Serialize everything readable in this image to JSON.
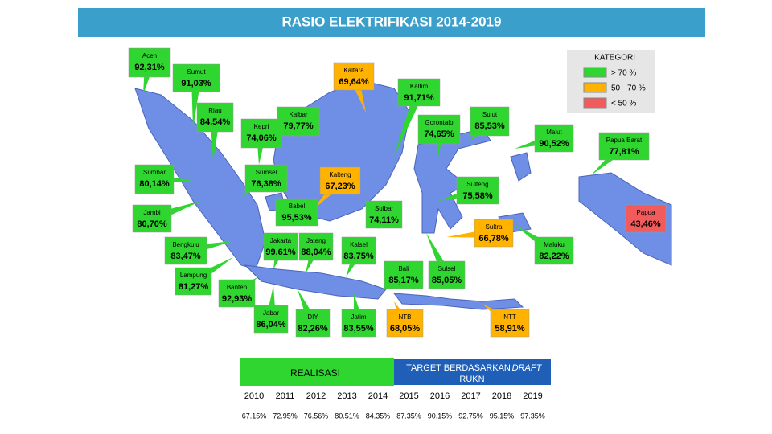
{
  "header": {
    "title": "RASIO ELEKTRIFIKASI 2014-2019"
  },
  "legend": {
    "title": "KATEGORI",
    "items": [
      {
        "label": "> 70 %",
        "color": "#2fd62f"
      },
      {
        "label": "50 -  70 %",
        "color": "#ffb300"
      },
      {
        "label": "< 50 %",
        "color": "#f25b5b"
      }
    ]
  },
  "regions": [
    {
      "name": "Aceh",
      "value": "92,31%",
      "color": "#2fd62f"
    },
    {
      "name": "Sumut",
      "value": "91,03%",
      "color": "#2fd62f"
    },
    {
      "name": "Kaltara",
      "value": "69,64%",
      "color": "#ffb300"
    },
    {
      "name": "Kaltim",
      "value": "91,71%",
      "color": "#2fd62f"
    },
    {
      "name": "Riau",
      "value": "84,54%",
      "color": "#2fd62f"
    },
    {
      "name": "Kalbar",
      "value": "79,77%",
      "color": "#2fd62f"
    },
    {
      "name": "Kepri",
      "value": "74,06%",
      "color": "#2fd62f"
    },
    {
      "name": "Gorontalo",
      "value": "74,65%",
      "color": "#2fd62f"
    },
    {
      "name": "Sulut",
      "value": "85,53%",
      "color": "#2fd62f"
    },
    {
      "name": "Malut",
      "value": "90,52%",
      "color": "#2fd62f"
    },
    {
      "name": "Papua Barat",
      "value": "77,81%",
      "color": "#2fd62f"
    },
    {
      "name": "Sumbar",
      "value": "80,14%",
      "color": "#2fd62f"
    },
    {
      "name": "Sumsel",
      "value": "76,38%",
      "color": "#2fd62f"
    },
    {
      "name": "Kalteng",
      "value": "67,23%",
      "color": "#ffb300"
    },
    {
      "name": "Sulteng",
      "value": "75,58%",
      "color": "#2fd62f"
    },
    {
      "name": "Jambi",
      "value": "80,70%",
      "color": "#2fd62f"
    },
    {
      "name": "Babel",
      "value": "95,53%",
      "color": "#2fd62f"
    },
    {
      "name": "Sulbar",
      "value": "74,11%",
      "color": "#2fd62f"
    },
    {
      "name": "Papua",
      "value": "43,46%",
      "color": "#f25b5b"
    },
    {
      "name": "Sultra",
      "value": "66,78%",
      "color": "#ffb300"
    },
    {
      "name": "Bengkulu",
      "value": "83,47%",
      "color": "#2fd62f"
    },
    {
      "name": "Jakarta",
      "value": "99,61%",
      "color": "#2fd62f"
    },
    {
      "name": "Jateng",
      "value": "88,04%",
      "color": "#2fd62f"
    },
    {
      "name": "Kalsel",
      "value": "83,75%",
      "color": "#2fd62f"
    },
    {
      "name": "Maluku",
      "value": "82,22%",
      "color": "#2fd62f"
    },
    {
      "name": "Bali",
      "value": "85,17%",
      "color": "#2fd62f"
    },
    {
      "name": "Sulsel",
      "value": "85,05%",
      "color": "#2fd62f"
    },
    {
      "name": "Lampung",
      "value": "81,27%",
      "color": "#2fd62f"
    },
    {
      "name": "Banten",
      "value": "92,93%",
      "color": "#2fd62f"
    },
    {
      "name": "Jabar",
      "value": "86,04%",
      "color": "#2fd62f"
    },
    {
      "name": "DIY",
      "value": "82,26%",
      "color": "#2fd62f"
    },
    {
      "name": "Jatim",
      "value": "83,55%",
      "color": "#2fd62f"
    },
    {
      "name": "NTB",
      "value": "68,05%",
      "color": "#ffb300"
    },
    {
      "name": "NTT",
      "value": "58,91%",
      "color": "#ffb300"
    }
  ],
  "table": {
    "realisasi": "REALISASI",
    "target": [
      "TARGET BERDASARKAN",
      "DRAFT",
      "RUKN"
    ],
    "years": [
      "2010",
      "2011",
      "2012",
      "2013",
      "2014",
      "2015",
      "2016",
      "2017",
      "2018",
      "2019"
    ],
    "values": [
      "67.15%",
      "72.95%",
      "76.56%",
      "80.51%",
      "84.35%",
      "87.35%",
      "90.15%",
      "92.75%",
      "95.15%",
      "97.35%"
    ]
  }
}
